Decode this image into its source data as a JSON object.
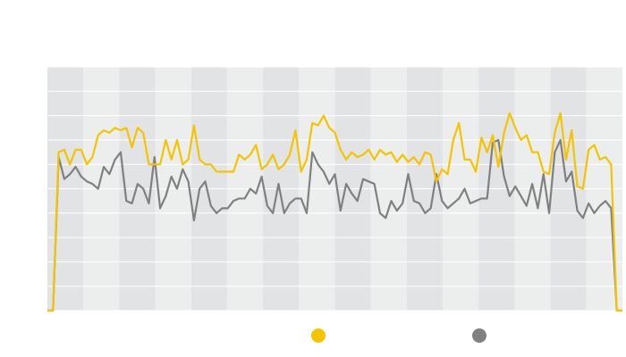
{
  "chart_data": {
    "type": "line",
    "series": [
      {
        "color": "#f5c400",
        "values": [
          0,
          0,
          6.5,
          6.6,
          6.0,
          6.6,
          6.6,
          6.0,
          6.3,
          7.2,
          7.4,
          7.3,
          7.5,
          7.4,
          7.5,
          6.7,
          7.5,
          7.3,
          6.0,
          6.0,
          6.0,
          7.0,
          6.2,
          7.0,
          6.0,
          6.2,
          7.6,
          6.2,
          6.0,
          6.0,
          5.7,
          5.7,
          5.7,
          5.7,
          6.4,
          6.2,
          6.4,
          6.8,
          5.8,
          6.0,
          6.4,
          5.8,
          6.0,
          6.4,
          7.4,
          5.7,
          6.2,
          7.7,
          7.6,
          8.0,
          7.5,
          7.3,
          6.6,
          6.2,
          6.5,
          6.3,
          6.4,
          6.6,
          6.2,
          6.6,
          6.4,
          6.5,
          6.1,
          6.4,
          6.1,
          6.3,
          6.0,
          6.5,
          6.4,
          5.3,
          5.8,
          5.6,
          7.0,
          7.7,
          6.2,
          6.2,
          5.7,
          7.1,
          6.5,
          7.2,
          5.9,
          7.3,
          8.1,
          7.5,
          7.0,
          7.2,
          6.5,
          6.5,
          5.7,
          5.6,
          7.3,
          8.1,
          6.2,
          7.4,
          5.1,
          5.0,
          6.6,
          6.8,
          6.2,
          6.3,
          6.0,
          0,
          0
        ]
      },
      {
        "color": "#808080",
        "values": [
          0,
          0,
          6.3,
          5.4,
          5.6,
          5.9,
          5.5,
          5.3,
          5.2,
          5.0,
          5.9,
          5.6,
          6.2,
          6.5,
          4.5,
          4.4,
          5.2,
          5.0,
          4.4,
          6.3,
          4.2,
          4.7,
          5.5,
          5.0,
          5.8,
          5.3,
          3.7,
          5.0,
          5.3,
          4.3,
          4.0,
          4.2,
          4.2,
          4.5,
          4.6,
          4.6,
          5.0,
          4.8,
          5.5,
          4.3,
          4.0,
          5.2,
          4.0,
          4.4,
          4.6,
          4.6,
          4.0,
          6.5,
          6.0,
          5.7,
          5.2,
          5.6,
          4.1,
          5.2,
          4.8,
          4.5,
          5.4,
          5.3,
          5.2,
          4.0,
          3.8,
          4.5,
          4.1,
          4.4,
          5.6,
          4.5,
          4.4,
          4.0,
          4.2,
          5.6,
          4.5,
          4.2,
          4.4,
          4.6,
          5.0,
          4.4,
          4.5,
          4.6,
          4.6,
          6.9,
          7.0,
          5.5,
          4.7,
          5.1,
          4.7,
          4.3,
          5.2,
          4.2,
          5.6,
          4.0,
          6.5,
          7.0,
          5.3,
          5.7,
          4.1,
          3.8,
          4.4,
          4.0,
          4.3,
          4.5,
          4.2,
          0,
          0
        ]
      }
    ],
    "ylim": [
      0,
      10
    ],
    "yticks": [
      0,
      1,
      2,
      3,
      4,
      5,
      6,
      7,
      8,
      9,
      10
    ],
    "grid": true
  }
}
